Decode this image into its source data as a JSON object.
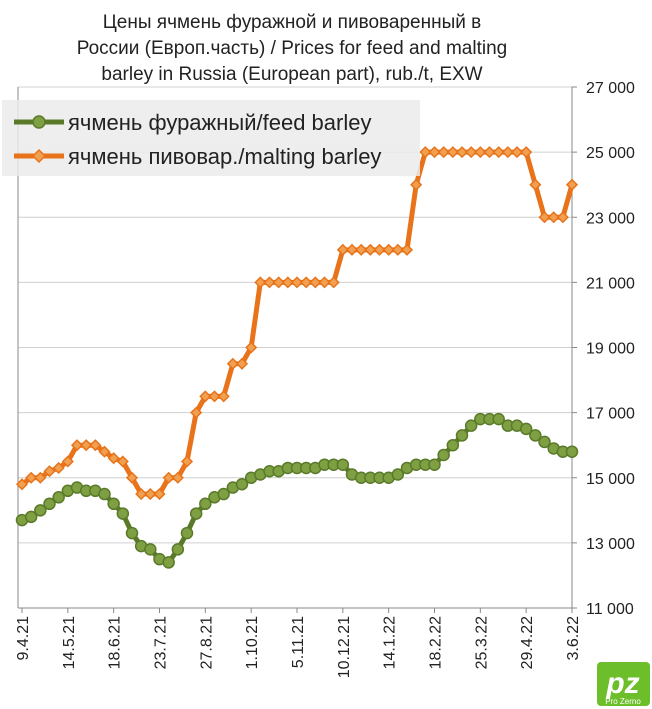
{
  "chart_data": {
    "type": "line",
    "title": [
      "Цены ячмень фуражной и пивоваренный в",
      "России (Европ.часть) / Prices for feed and malting",
      "barley in Russia (European part), rub./t, EXW"
    ],
    "categories": [
      "9.4.21",
      null,
      null,
      null,
      null,
      "14.5.21",
      null,
      null,
      null,
      null,
      "18.6.21",
      null,
      null,
      null,
      null,
      "23.7.21",
      null,
      null,
      null,
      null,
      "27.8.21",
      null,
      null,
      null,
      null,
      "1.10.21",
      null,
      null,
      null,
      null,
      "5.11.21",
      null,
      null,
      null,
      null,
      "10.12.21",
      null,
      null,
      null,
      null,
      "14.1.22",
      null,
      null,
      null,
      null,
      "18.2.22",
      null,
      null,
      null,
      null,
      "25.3.22",
      null,
      null,
      null,
      null,
      "29.4.22",
      null,
      null,
      null,
      null,
      "3.6.22"
    ],
    "series": [
      {
        "name": "ячмень фуражный/feed barley",
        "color": "#5a7a2a",
        "marker_color": "#7ea043",
        "values": [
          13700,
          13800,
          14000,
          14200,
          14400,
          14600,
          14700,
          14600,
          14600,
          14500,
          14200,
          13900,
          13300,
          12900,
          12800,
          12500,
          12400,
          12800,
          13300,
          13900,
          14200,
          14400,
          14500,
          14700,
          14800,
          15000,
          15100,
          15200,
          15200,
          15300,
          15300,
          15300,
          15300,
          15400,
          15400,
          15400,
          15100,
          15000,
          15000,
          15000,
          15000,
          15100,
          15300,
          15400,
          15400,
          15400,
          15700,
          16000,
          16300,
          16600,
          16800,
          16800,
          16800,
          16600,
          16600,
          16500,
          16300,
          16100,
          15900,
          15800,
          15800
        ]
      },
      {
        "name": "ячмень пивовар./malting barley",
        "color": "#e8731a",
        "marker_color": "#f0a050",
        "values": [
          14800,
          15000,
          15000,
          15200,
          15300,
          15500,
          16000,
          16000,
          16000,
          15800,
          15600,
          15500,
          15000,
          14500,
          14500,
          14500,
          15000,
          15000,
          15500,
          17000,
          17500,
          17500,
          17500,
          18500,
          18500,
          19000,
          21000,
          21000,
          21000,
          21000,
          21000,
          21000,
          21000,
          21000,
          21000,
          22000,
          22000,
          22000,
          22000,
          22000,
          22000,
          22000,
          22000,
          24000,
          25000,
          25000,
          25000,
          25000,
          25000,
          25000,
          25000,
          25000,
          25000,
          25000,
          25000,
          25000,
          24000,
          23000,
          23000,
          23000,
          24000
        ]
      }
    ],
    "ylim": [
      11000,
      27000
    ],
    "yticks": [
      {
        "value": 11000,
        "label": "11 000"
      },
      {
        "value": 13000,
        "label": "13 000"
      },
      {
        "value": 15000,
        "label": "15 000"
      },
      {
        "value": 17000,
        "label": "17 000"
      },
      {
        "value": 19000,
        "label": "19 000"
      },
      {
        "value": 21000,
        "label": "21 000"
      },
      {
        "value": 23000,
        "label": "23 000"
      },
      {
        "value": 25000,
        "label": "25 000"
      },
      {
        "value": 27000,
        "label": "27 000"
      }
    ],
    "grid": true,
    "legend": "upper left",
    "logo": {
      "mark": "pz",
      "text": "Pro Zerno"
    }
  }
}
